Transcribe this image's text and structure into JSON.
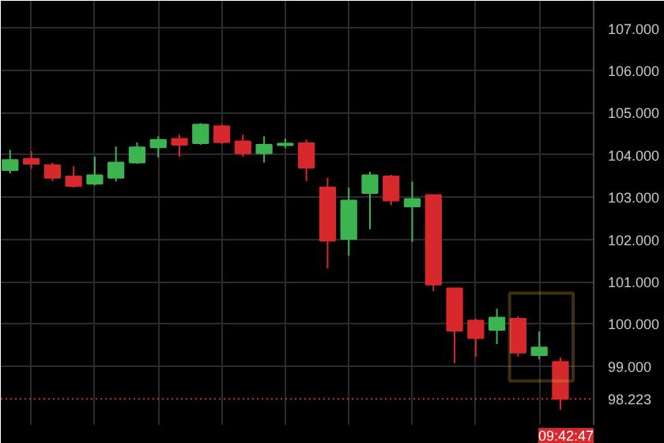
{
  "chart_data": {
    "type": "candlestick",
    "categories": [
      null,
      null,
      null,
      null,
      null,
      null,
      null,
      null,
      null,
      null,
      null,
      null,
      null,
      null,
      null,
      null,
      null,
      null,
      null,
      null,
      null,
      null,
      null,
      null,
      null,
      null,
      null
    ],
    "ohlc": [
      [
        103.64,
        104.12,
        103.56,
        103.88
      ],
      [
        103.91,
        104.09,
        103.67,
        103.79
      ],
      [
        103.76,
        103.82,
        103.38,
        103.46
      ],
      [
        103.49,
        103.73,
        103.23,
        103.26
      ],
      [
        103.32,
        103.96,
        103.28,
        103.52
      ],
      [
        103.46,
        104.2,
        103.37,
        103.82
      ],
      [
        103.82,
        104.3,
        103.79,
        104.18
      ],
      [
        104.18,
        104.44,
        103.94,
        104.36
      ],
      [
        104.38,
        104.48,
        103.96,
        104.24
      ],
      [
        104.28,
        104.75,
        104.24,
        104.72
      ],
      [
        104.68,
        104.72,
        104.26,
        104.3
      ],
      [
        104.32,
        104.48,
        103.96,
        104.04
      ],
      [
        104.04,
        104.44,
        103.82,
        104.24
      ],
      [
        104.23,
        104.39,
        104.16,
        104.27
      ],
      [
        104.28,
        104.36,
        103.38,
        103.7
      ],
      [
        103.23,
        103.46,
        101.31,
        101.97
      ],
      [
        102.01,
        103.23,
        101.61,
        102.92
      ],
      [
        103.1,
        103.6,
        102.24,
        103.52
      ],
      [
        103.49,
        103.53,
        102.81,
        102.92
      ],
      [
        102.78,
        103.37,
        101.94,
        102.96
      ],
      [
        103.05,
        103.05,
        100.77,
        100.93
      ],
      [
        100.84,
        100.84,
        99.07,
        99.84
      ],
      [
        100.08,
        100.12,
        99.22,
        99.66
      ],
      [
        99.86,
        100.36,
        99.52,
        100.15
      ],
      [
        100.12,
        100.18,
        99.22,
        99.32
      ],
      [
        99.26,
        99.82,
        99.16,
        99.44
      ],
      [
        99.1,
        99.2,
        97.97,
        98.223
      ]
    ],
    "colors": [
      "#3cb550",
      "#d7282c",
      "#d7282c",
      "#d7282c",
      "#3cb550",
      "#3cb550",
      "#3cb550",
      "#3cb550",
      "#d7282c",
      "#3cb550",
      "#d7282c",
      "#d7282c",
      "#3cb550",
      "#3cb550",
      "#d7282c",
      "#d7282c",
      "#3cb550",
      "#3cb550",
      "#d7282c",
      "#3cb550",
      "#d7282c",
      "#d7282c",
      "#d7282c",
      "#3cb550",
      "#d7282c",
      "#3cb550",
      "#d7282c"
    ],
    "ylim": [
      97.61,
      107.65
    ],
    "yticks": [
      {
        "value": 99,
        "label": "99.000"
      },
      {
        "value": 100,
        "label": "100.000"
      },
      {
        "value": 101,
        "label": "101.000"
      },
      {
        "value": 102,
        "label": "102.000"
      },
      {
        "value": 103,
        "label": "103.000"
      },
      {
        "value": 104,
        "label": "104.000"
      },
      {
        "value": 105,
        "label": "105.000"
      },
      {
        "value": 106,
        "label": "106.000"
      },
      {
        "value": 107,
        "label": "107.000"
      }
    ],
    "tick_labels": "y",
    "grid": true,
    "ref_lines": [
      {
        "axis": "y",
        "value": 98.223,
        "label": "98.223",
        "color": "#d7282c",
        "line_style": "dotted"
      }
    ],
    "annotations": [
      "09:42:47"
    ]
  }
}
